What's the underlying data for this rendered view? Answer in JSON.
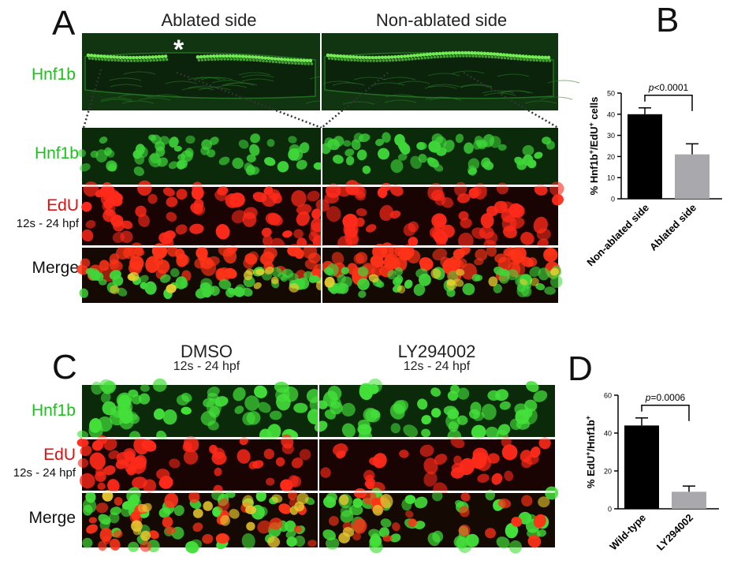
{
  "panelA": {
    "letter": "A",
    "col_titles": [
      "Ablated side",
      "Non-ablated side"
    ],
    "overview_label": "Hnf1b",
    "asterisk": "*",
    "rows": [
      {
        "label": "Hnf1b",
        "sub": "",
        "color": "#1fbf1f"
      },
      {
        "label": "EdU",
        "sub": "12s - 24 hpf",
        "color": "#e01010"
      },
      {
        "label": "Merge",
        "sub": "",
        "color": "#111111"
      }
    ]
  },
  "panelC": {
    "letter": "C",
    "cols": [
      {
        "title": "DMSO",
        "sub": "12s - 24 hpf"
      },
      {
        "title": "LY294002",
        "sub": "12s - 24 hpf"
      }
    ],
    "rows": [
      {
        "label": "Hnf1b",
        "sub": "",
        "color": "#1fbf1f"
      },
      {
        "label": "EdU",
        "sub": "12s - 24 hpf",
        "color": "#e01010"
      },
      {
        "label": "Merge",
        "sub": "",
        "color": "#111111"
      }
    ]
  },
  "chart_data": [
    {
      "panel": "B",
      "type": "bar",
      "categories": [
        "Non-ablated side",
        "Ablated side"
      ],
      "values": [
        40,
        21
      ],
      "errors": [
        3,
        5
      ],
      "colors": [
        "#000000",
        "#a8a8ad"
      ],
      "ylabel": "% Hnf1b+/EdU+ cells",
      "ylim": [
        0,
        50
      ],
      "yticks": [
        "0",
        "10",
        "20",
        "30",
        "40",
        "50"
      ],
      "annotation": "p<0.0001",
      "annotation_p": "p",
      "annotation_rest": "<0.0001"
    },
    {
      "panel": "D",
      "type": "bar",
      "categories": [
        "Wild-type",
        "LY294002"
      ],
      "values": [
        44,
        9
      ],
      "errors": [
        4,
        3
      ],
      "colors": [
        "#000000",
        "#a8a8ad"
      ],
      "ylabel": "% EdU+/Hnf1b+",
      "ylim": [
        0,
        60
      ],
      "yticks": [
        "0",
        "20",
        "40",
        "60"
      ],
      "annotation": "p=0.0006",
      "annotation_p": "p",
      "annotation_rest": "=0.0006"
    }
  ]
}
